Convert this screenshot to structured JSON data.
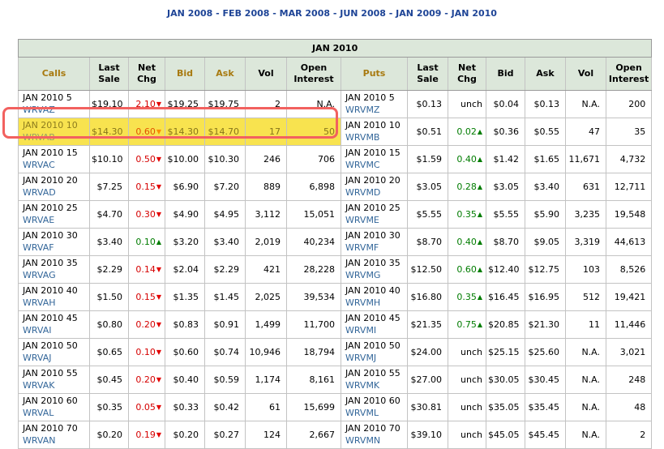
{
  "nav": {
    "separator": "-",
    "items": [
      {
        "label": "JAN 2008"
      },
      {
        "label": "FEB 2008"
      },
      {
        "label": "MAR 2008"
      },
      {
        "label": "JUN 2008"
      },
      {
        "label": "JAN 2009"
      },
      {
        "label": "JAN 2010"
      }
    ]
  },
  "glyphs": {
    "up_arrow": "▲",
    "down_arrow": "▼"
  },
  "colors": {
    "nav_blue": "#1e4496",
    "ticker_blue": "#336699",
    "accent_gold": "#a87a10",
    "header_green": "#dce7da",
    "up_green": "#007c00",
    "down_red": "#d50000",
    "highlight_yellow": "#f8e34f",
    "highlight_border": "#f2615f"
  },
  "table": {
    "title": "JAN 2010",
    "headers": [
      {
        "label": "Calls",
        "accent": true
      },
      {
        "label": "Last Sale",
        "accent": false
      },
      {
        "label": "Net Chg",
        "accent": false
      },
      {
        "label": "Bid",
        "accent": true
      },
      {
        "label": "Ask",
        "accent": true
      },
      {
        "label": "Vol",
        "accent": false
      },
      {
        "label": "Open Interest",
        "accent": false
      },
      {
        "label": "Puts",
        "accent": true
      },
      {
        "label": "Last Sale",
        "accent": false
      },
      {
        "label": "Net Chg",
        "accent": false
      },
      {
        "label": "Bid",
        "accent": false
      },
      {
        "label": "Ask",
        "accent": false
      },
      {
        "label": "Vol",
        "accent": false
      },
      {
        "label": "Open Interest",
        "accent": false
      }
    ],
    "rows": [
      {
        "highlighted": false,
        "calls": {
          "name": "JAN 2010 5",
          "ticker": "WRVAZ",
          "last_sale": "$19.10",
          "net_chg": "2.10",
          "dir": "down",
          "bid": "$19.25",
          "ask": "$19.75",
          "vol": "2",
          "open_interest": "N.A."
        },
        "puts": {
          "name": "JAN 2010 5",
          "ticker": "WRVMZ",
          "last_sale": "$0.13",
          "net_chg": "unch",
          "dir": "none",
          "bid": "$0.04",
          "ask": "$0.13",
          "vol": "N.A.",
          "open_interest": "200"
        }
      },
      {
        "highlighted": true,
        "calls": {
          "name": "JAN 2010 10",
          "ticker": "WRVAB",
          "last_sale": "$14.30",
          "net_chg": "0.60",
          "dir": "down",
          "bid": "$14.30",
          "ask": "$14.70",
          "vol": "17",
          "open_interest": "50"
        },
        "puts": {
          "name": "JAN 2010 10",
          "ticker": "WRVMB",
          "last_sale": "$0.51",
          "net_chg": "0.02",
          "dir": "up",
          "bid": "$0.36",
          "ask": "$0.55",
          "vol": "47",
          "open_interest": "35"
        }
      },
      {
        "highlighted": false,
        "calls": {
          "name": "JAN 2010 15",
          "ticker": "WRVAC",
          "last_sale": "$10.10",
          "net_chg": "0.50",
          "dir": "down",
          "bid": "$10.00",
          "ask": "$10.30",
          "vol": "246",
          "open_interest": "706"
        },
        "puts": {
          "name": "JAN 2010 15",
          "ticker": "WRVMC",
          "last_sale": "$1.59",
          "net_chg": "0.40",
          "dir": "up",
          "bid": "$1.42",
          "ask": "$1.65",
          "vol": "11,671",
          "open_interest": "4,732"
        }
      },
      {
        "highlighted": false,
        "calls": {
          "name": "JAN 2010 20",
          "ticker": "WRVAD",
          "last_sale": "$7.25",
          "net_chg": "0.15",
          "dir": "down",
          "bid": "$6.90",
          "ask": "$7.20",
          "vol": "889",
          "open_interest": "6,898"
        },
        "puts": {
          "name": "JAN 2010 20",
          "ticker": "WRVMD",
          "last_sale": "$3.05",
          "net_chg": "0.28",
          "dir": "up",
          "bid": "$3.05",
          "ask": "$3.40",
          "vol": "631",
          "open_interest": "12,711"
        }
      },
      {
        "highlighted": false,
        "calls": {
          "name": "JAN 2010 25",
          "ticker": "WRVAE",
          "last_sale": "$4.70",
          "net_chg": "0.30",
          "dir": "down",
          "bid": "$4.90",
          "ask": "$4.95",
          "vol": "3,112",
          "open_interest": "15,051"
        },
        "puts": {
          "name": "JAN 2010 25",
          "ticker": "WRVME",
          "last_sale": "$5.55",
          "net_chg": "0.35",
          "dir": "up",
          "bid": "$5.55",
          "ask": "$5.90",
          "vol": "3,235",
          "open_interest": "19,548"
        }
      },
      {
        "highlighted": false,
        "calls": {
          "name": "JAN 2010 30",
          "ticker": "WRVAF",
          "last_sale": "$3.40",
          "net_chg": "0.10",
          "dir": "up",
          "bid": "$3.20",
          "ask": "$3.40",
          "vol": "2,019",
          "open_interest": "40,234"
        },
        "puts": {
          "name": "JAN 2010 30",
          "ticker": "WRVMF",
          "last_sale": "$8.70",
          "net_chg": "0.40",
          "dir": "up",
          "bid": "$8.70",
          "ask": "$9.05",
          "vol": "3,319",
          "open_interest": "44,613"
        }
      },
      {
        "highlighted": false,
        "calls": {
          "name": "JAN 2010 35",
          "ticker": "WRVAG",
          "last_sale": "$2.29",
          "net_chg": "0.14",
          "dir": "down",
          "bid": "$2.04",
          "ask": "$2.29",
          "vol": "421",
          "open_interest": "28,228"
        },
        "puts": {
          "name": "JAN 2010 35",
          "ticker": "WRVMG",
          "last_sale": "$12.50",
          "net_chg": "0.60",
          "dir": "up",
          "bid": "$12.40",
          "ask": "$12.75",
          "vol": "103",
          "open_interest": "8,526"
        }
      },
      {
        "highlighted": false,
        "calls": {
          "name": "JAN 2010 40",
          "ticker": "WRVAH",
          "last_sale": "$1.50",
          "net_chg": "0.15",
          "dir": "down",
          "bid": "$1.35",
          "ask": "$1.45",
          "vol": "2,025",
          "open_interest": "39,534"
        },
        "puts": {
          "name": "JAN 2010 40",
          "ticker": "WRVMH",
          "last_sale": "$16.80",
          "net_chg": "0.35",
          "dir": "up",
          "bid": "$16.45",
          "ask": "$16.95",
          "vol": "512",
          "open_interest": "19,421"
        }
      },
      {
        "highlighted": false,
        "calls": {
          "name": "JAN 2010 45",
          "ticker": "WRVAI",
          "last_sale": "$0.80",
          "net_chg": "0.20",
          "dir": "down",
          "bid": "$0.83",
          "ask": "$0.91",
          "vol": "1,499",
          "open_interest": "11,700"
        },
        "puts": {
          "name": "JAN 2010 45",
          "ticker": "WRVMI",
          "last_sale": "$21.35",
          "net_chg": "0.75",
          "dir": "up",
          "bid": "$20.85",
          "ask": "$21.30",
          "vol": "11",
          "open_interest": "11,446"
        }
      },
      {
        "highlighted": false,
        "calls": {
          "name": "JAN 2010 50",
          "ticker": "WRVAJ",
          "last_sale": "$0.65",
          "net_chg": "0.10",
          "dir": "down",
          "bid": "$0.60",
          "ask": "$0.74",
          "vol": "10,946",
          "open_interest": "18,794"
        },
        "puts": {
          "name": "JAN 2010 50",
          "ticker": "WRVMJ",
          "last_sale": "$24.00",
          "net_chg": "unch",
          "dir": "none",
          "bid": "$25.15",
          "ask": "$25.60",
          "vol": "N.A.",
          "open_interest": "3,021"
        }
      },
      {
        "highlighted": false,
        "calls": {
          "name": "JAN 2010 55",
          "ticker": "WRVAK",
          "last_sale": "$0.45",
          "net_chg": "0.20",
          "dir": "down",
          "bid": "$0.40",
          "ask": "$0.59",
          "vol": "1,174",
          "open_interest": "8,161"
        },
        "puts": {
          "name": "JAN 2010 55",
          "ticker": "WRVMK",
          "last_sale": "$27.00",
          "net_chg": "unch",
          "dir": "none",
          "bid": "$30.05",
          "ask": "$30.45",
          "vol": "N.A.",
          "open_interest": "248"
        }
      },
      {
        "highlighted": false,
        "calls": {
          "name": "JAN 2010 60",
          "ticker": "WRVAL",
          "last_sale": "$0.35",
          "net_chg": "0.05",
          "dir": "down",
          "bid": "$0.33",
          "ask": "$0.42",
          "vol": "61",
          "open_interest": "15,699"
        },
        "puts": {
          "name": "JAN 2010 60",
          "ticker": "WRVML",
          "last_sale": "$30.81",
          "net_chg": "unch",
          "dir": "none",
          "bid": "$35.05",
          "ask": "$35.45",
          "vol": "N.A.",
          "open_interest": "48"
        }
      },
      {
        "highlighted": false,
        "calls": {
          "name": "JAN 2010 70",
          "ticker": "WRVAN",
          "last_sale": "$0.20",
          "net_chg": "0.19",
          "dir": "down",
          "bid": "$0.20",
          "ask": "$0.27",
          "vol": "124",
          "open_interest": "2,667"
        },
        "puts": {
          "name": "JAN 2010 70",
          "ticker": "WRVMN",
          "last_sale": "$39.10",
          "net_chg": "unch",
          "dir": "none",
          "bid": "$45.05",
          "ask": "$45.45",
          "vol": "N.A.",
          "open_interest": "2"
        }
      }
    ]
  }
}
